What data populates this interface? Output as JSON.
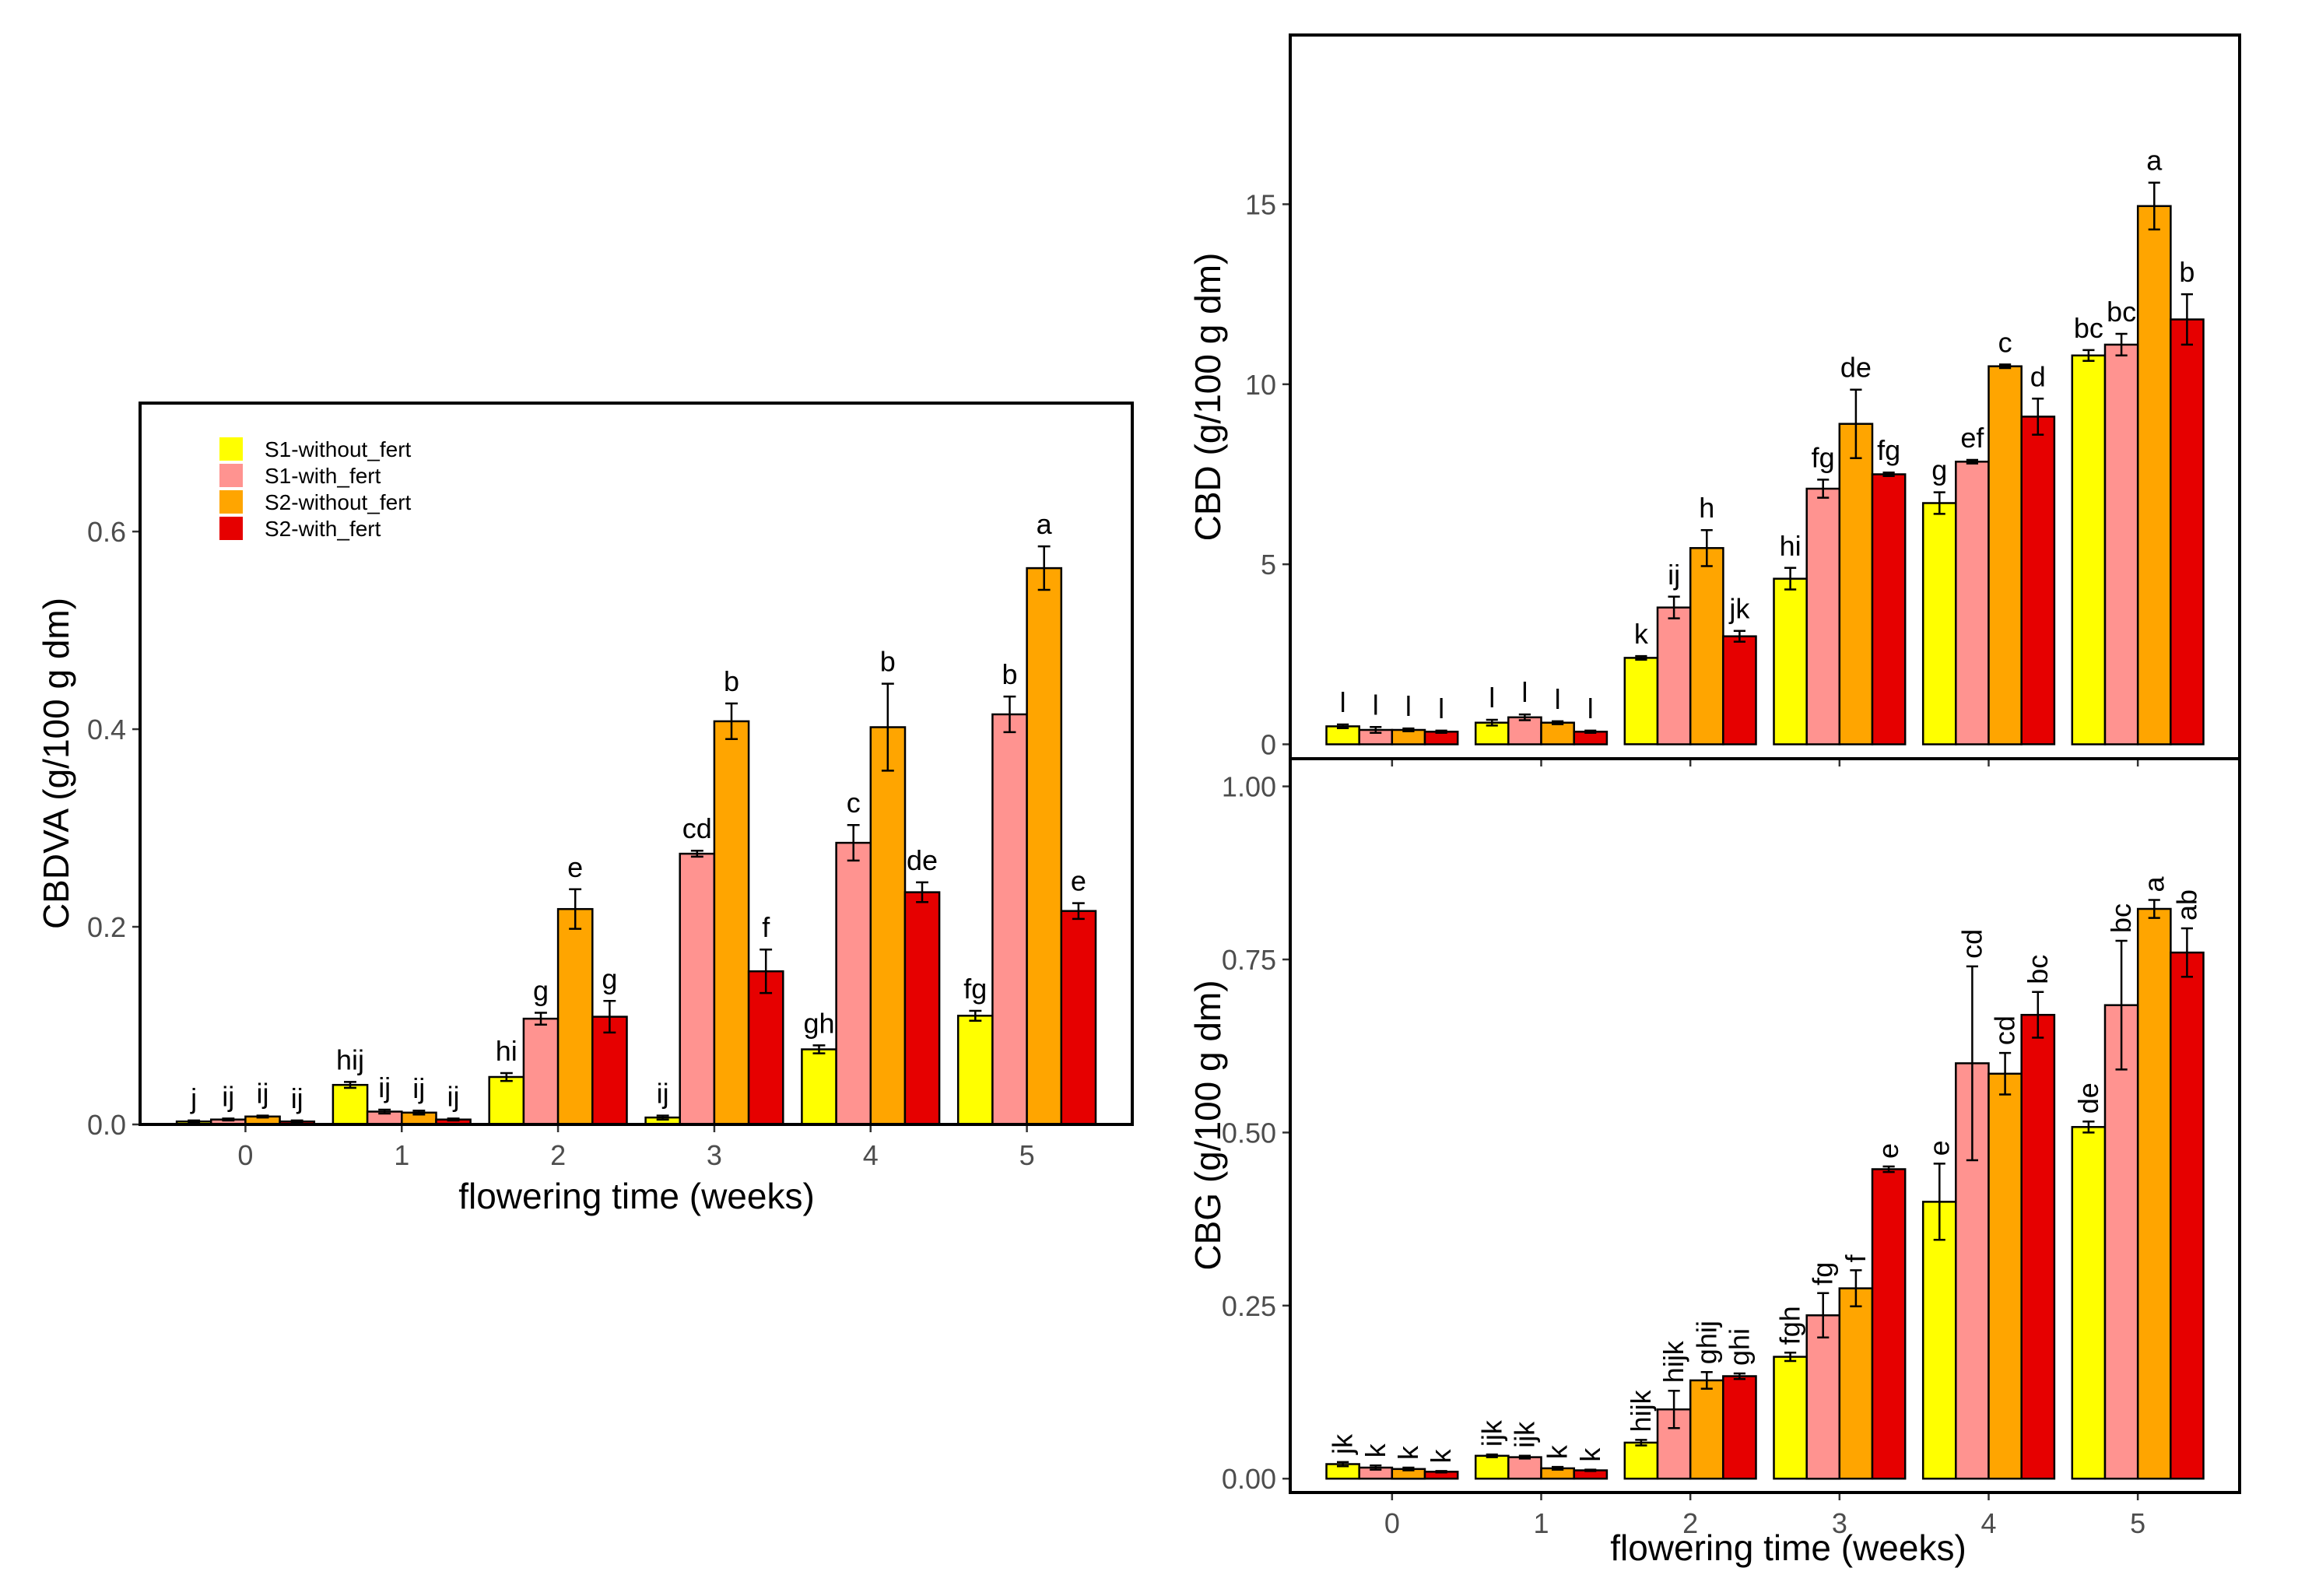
{
  "chart_data": [
    {
      "id": "cbdva",
      "type": "bar",
      "ylabel": "CBDVA (g/100 g dm)",
      "xlabel": "flowering time (weeks)",
      "categories": [
        "0",
        "1",
        "2",
        "3",
        "4",
        "5"
      ],
      "ylim": [
        0,
        0.73
      ],
      "yticks": [
        0.0,
        0.2,
        0.4,
        0.6
      ],
      "ytick_labels": [
        "0.0",
        "0.2",
        "0.4",
        "0.6"
      ],
      "legend": {
        "position": "top-left",
        "entries": [
          "S1-without_fert",
          "S1-with_fert",
          "S2-without_fert",
          "S2-with_fert"
        ]
      },
      "series": [
        {
          "name": "S1-without_fert",
          "color": "#ffff00",
          "values": [
            0.003,
            0.04,
            0.048,
            0.007,
            0.076,
            0.11
          ],
          "errors": [
            0.001,
            0.003,
            0.004,
            0.002,
            0.004,
            0.005
          ],
          "labels": [
            "j",
            "hij",
            "hi",
            "ij",
            "gh",
            "fg"
          ]
        },
        {
          "name": "S1-with_fert",
          "color": "#ff9390",
          "values": [
            0.005,
            0.013,
            0.107,
            0.274,
            0.285,
            0.415
          ],
          "errors": [
            0.001,
            0.002,
            0.006,
            0.003,
            0.018,
            0.018
          ],
          "labels": [
            "ij",
            "ij",
            "g",
            "cd",
            "c",
            "b"
          ]
        },
        {
          "name": "S2-without_fert",
          "color": "#ffa500",
          "values": [
            0.008,
            0.012,
            0.218,
            0.408,
            0.402,
            0.563
          ],
          "errors": [
            0.001,
            0.002,
            0.02,
            0.018,
            0.044,
            0.022
          ],
          "labels": [
            "ij",
            "ij",
            "e",
            "b",
            "b",
            "a"
          ]
        },
        {
          "name": "S2-with_fert",
          "color": "#e60000",
          "values": [
            0.003,
            0.005,
            0.109,
            0.155,
            0.235,
            0.216
          ],
          "errors": [
            0.001,
            0.001,
            0.016,
            0.022,
            0.01,
            0.008
          ],
          "labels": [
            "ij",
            "ij",
            "g",
            "f",
            "de",
            "e"
          ]
        }
      ]
    },
    {
      "id": "cbd",
      "type": "bar",
      "ylabel": "CBD (g/100 g dm)",
      "xlabel": "",
      "categories": [
        "0",
        "1",
        "2",
        "3",
        "4",
        "5"
      ],
      "ylim": [
        -0.4,
        19.7
      ],
      "yticks": [
        0,
        5,
        10,
        15
      ],
      "ytick_labels": [
        "0",
        "5",
        "10",
        "15"
      ],
      "series": [
        {
          "name": "S1-without_fert",
          "color": "#ffff00",
          "values": [
            0.5,
            0.6,
            2.4,
            4.6,
            6.7,
            10.8
          ],
          "errors": [
            0.05,
            0.08,
            0.05,
            0.3,
            0.3,
            0.15
          ],
          "labels": [
            "l",
            "l",
            "k",
            "hi",
            "g",
            "bc"
          ]
        },
        {
          "name": "S1-with_fert",
          "color": "#ff9390",
          "values": [
            0.4,
            0.75,
            3.8,
            7.1,
            7.85,
            11.1
          ],
          "errors": [
            0.08,
            0.08,
            0.3,
            0.25,
            0.05,
            0.3
          ],
          "labels": [
            "l",
            "l",
            "ij",
            "fg",
            "ef",
            "bc"
          ]
        },
        {
          "name": "S2-without_fert",
          "color": "#ffa500",
          "values": [
            0.4,
            0.6,
            5.45,
            8.9,
            10.5,
            14.95
          ],
          "errors": [
            0.04,
            0.04,
            0.5,
            0.95,
            0.05,
            0.65
          ],
          "labels": [
            "l",
            "l",
            "h",
            "de",
            "c",
            "a"
          ]
        },
        {
          "name": "S2-with_fert",
          "color": "#e60000",
          "values": [
            0.35,
            0.35,
            3.0,
            7.5,
            9.1,
            11.8
          ],
          "errors": [
            0.03,
            0.03,
            0.15,
            0.05,
            0.5,
            0.7
          ],
          "labels": [
            "l",
            "l",
            "jk",
            "fg",
            "d",
            "b"
          ]
        }
      ]
    },
    {
      "id": "cbg",
      "type": "bar",
      "ylabel": "CBG (g/100 g dm)",
      "xlabel": "flowering time (weeks)",
      "categories": [
        "0",
        "1",
        "2",
        "3",
        "4",
        "5"
      ],
      "ylim": [
        -0.02,
        1.04
      ],
      "yticks": [
        0.0,
        0.25,
        0.5,
        0.75,
        1.0
      ],
      "ytick_labels": [
        "0.00",
        "0.25",
        "0.50",
        "0.75",
        "1.00"
      ],
      "series": [
        {
          "name": "S1-without_fert",
          "color": "#ffff00",
          "values": [
            0.021,
            0.033,
            0.052,
            0.176,
            0.4,
            0.508
          ],
          "errors": [
            0.003,
            0.002,
            0.004,
            0.006,
            0.055,
            0.008
          ],
          "labels": [
            "jk",
            "ijk",
            "hijk",
            "fgh",
            "e",
            "de"
          ]
        },
        {
          "name": "S1-with_fert",
          "color": "#ff9390",
          "values": [
            0.016,
            0.031,
            0.1,
            0.236,
            0.6,
            0.684
          ],
          "errors": [
            0.003,
            0.002,
            0.027,
            0.032,
            0.14,
            0.093
          ],
          "labels": [
            "k",
            "ijk",
            "hijk",
            "fg",
            "cd",
            "bc"
          ]
        },
        {
          "name": "S2-without_fert",
          "color": "#ffa500",
          "values": [
            0.014,
            0.015,
            0.142,
            0.275,
            0.585,
            0.823
          ],
          "errors": [
            0.002,
            0.002,
            0.012,
            0.026,
            0.03,
            0.013
          ],
          "labels": [
            "k",
            "k",
            "ghij",
            "f",
            "cd",
            "a"
          ]
        },
        {
          "name": "S2-with_fert",
          "color": "#e60000",
          "values": [
            0.01,
            0.012,
            0.148,
            0.447,
            0.67,
            0.76
          ],
          "errors": [
            0.001,
            0.001,
            0.004,
            0.004,
            0.033,
            0.035
          ],
          "labels": [
            "k",
            "k",
            "ghi",
            "e",
            "bc",
            "ab"
          ]
        }
      ]
    }
  ]
}
